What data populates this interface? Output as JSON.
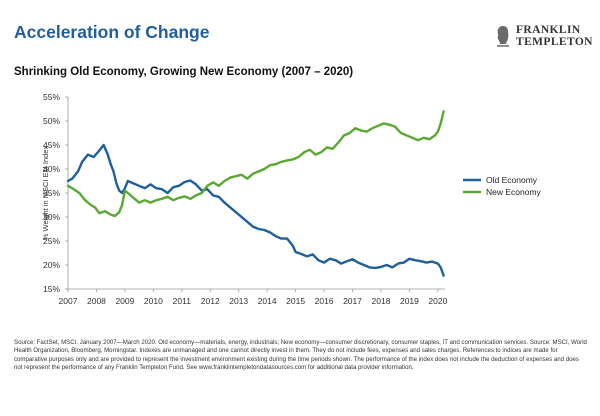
{
  "page": {
    "title": "Acceleration of Change",
    "subtitle": "Shrinking Old Economy, Growing New Economy (2007 – 2020)",
    "logo": {
      "line1": "FRANKLIN",
      "line2": "TEMPLETON",
      "icon": "franklin-head-icon"
    },
    "source_note": "Source: FactSet, MSCI. January 2007—March 2020. Old economy—materials, energy, industrials; New economy—consumer discretionary, consumer staples, IT and communication services. Source: MSCI, World Health Organization, Bloomberg, Morningstar. Indexes are unmanaged and one cannot directly invest in them. They do not include fees, expenses and sales charges. References to indices are made for comparative purposes only and are provided to represent the investment environment existing during the time periods shown. The performance of the index does not include the deduction of expenses and does not represent the performance of any Franklin Templeton Fund.  See www.franklintempletondatasources.com for additional data provider information."
  },
  "colors": {
    "title": "#1f5f9e",
    "old": "#1f5f9e",
    "new": "#5aa832"
  },
  "chart_data": {
    "type": "line",
    "title": "Shrinking Old Economy, Growing New Economy (2007 – 2020)",
    "xlabel": "",
    "ylabel": "% Weight in MSCI EM Index",
    "xlim": [
      2007,
      2020.25
    ],
    "ylim": [
      15,
      55
    ],
    "xticks": [
      2007,
      2008,
      2009,
      2010,
      2011,
      2012,
      2013,
      2014,
      2015,
      2016,
      2017,
      2018,
      2019,
      2020
    ],
    "yticks": [
      15,
      20,
      25,
      30,
      35,
      40,
      45,
      50,
      55
    ],
    "ytick_labels": [
      "15%",
      "20%",
      "25%",
      "30%",
      "35%",
      "40%",
      "45%",
      "50%",
      "55%"
    ],
    "grid": false,
    "legend": "right",
    "series": [
      {
        "name": "Old Economy",
        "x": [
          2007.0,
          2007.15,
          2007.35,
          2007.5,
          2007.7,
          2007.9,
          2008.05,
          2008.25,
          2008.4,
          2008.5,
          2008.6,
          2008.7,
          2008.8,
          2008.9,
          2009.0,
          2009.1,
          2009.3,
          2009.5,
          2009.7,
          2009.9,
          2010.1,
          2010.3,
          2010.5,
          2010.7,
          2010.9,
          2011.1,
          2011.3,
          2011.5,
          2011.7,
          2011.9,
          2012.1,
          2012.3,
          2012.5,
          2012.7,
          2012.9,
          2013.1,
          2013.3,
          2013.5,
          2013.7,
          2013.9,
          2014.1,
          2014.3,
          2014.5,
          2014.7,
          2014.9,
          2015.0,
          2015.2,
          2015.4,
          2015.6,
          2015.8,
          2016.0,
          2016.2,
          2016.4,
          2016.6,
          2016.8,
          2017.0,
          2017.2,
          2017.4,
          2017.6,
          2017.8,
          2018.0,
          2018.2,
          2018.4,
          2018.6,
          2018.8,
          2019.0,
          2019.2,
          2019.4,
          2019.6,
          2019.8,
          2020.0,
          2020.1,
          2020.2
        ],
        "values": [
          37.5,
          38.0,
          39.5,
          41.5,
          43.0,
          42.5,
          43.5,
          45.0,
          43.0,
          41.0,
          39.5,
          37.0,
          35.5,
          35.0,
          36.0,
          37.5,
          37.0,
          36.5,
          36.0,
          36.8,
          36.0,
          35.8,
          35.0,
          36.2,
          36.5,
          37.3,
          37.6,
          36.8,
          35.5,
          35.8,
          34.5,
          34.2,
          33.0,
          32.0,
          31.0,
          30.0,
          29.0,
          28.0,
          27.5,
          27.3,
          26.8,
          26.0,
          25.5,
          25.5,
          24.0,
          22.7,
          22.3,
          21.8,
          22.2,
          21.0,
          20.5,
          21.3,
          21.0,
          20.3,
          20.8,
          21.2,
          20.5,
          20.0,
          19.5,
          19.4,
          19.6,
          20.0,
          19.5,
          20.3,
          20.5,
          21.3,
          21.0,
          20.8,
          20.5,
          20.7,
          20.3,
          19.5,
          17.8
        ]
      },
      {
        "name": "New Economy",
        "x": [
          2007.0,
          2007.2,
          2007.4,
          2007.6,
          2007.8,
          2007.95,
          2008.1,
          2008.3,
          2008.5,
          2008.65,
          2008.8,
          2008.9,
          2009.0,
          2009.1,
          2009.3,
          2009.5,
          2009.7,
          2009.9,
          2010.1,
          2010.3,
          2010.5,
          2010.7,
          2010.9,
          2011.1,
          2011.3,
          2011.5,
          2011.7,
          2011.9,
          2012.1,
          2012.3,
          2012.5,
          2012.7,
          2012.9,
          2013.1,
          2013.3,
          2013.5,
          2013.7,
          2013.9,
          2014.1,
          2014.3,
          2014.5,
          2014.7,
          2014.9,
          2015.1,
          2015.3,
          2015.5,
          2015.7,
          2015.9,
          2016.1,
          2016.3,
          2016.5,
          2016.7,
          2016.9,
          2017.1,
          2017.3,
          2017.5,
          2017.7,
          2017.9,
          2018.1,
          2018.3,
          2018.5,
          2018.7,
          2018.9,
          2019.1,
          2019.3,
          2019.5,
          2019.7,
          2019.9,
          2020.0,
          2020.1,
          2020.2
        ],
        "values": [
          36.5,
          35.8,
          35.0,
          33.5,
          32.5,
          32.0,
          30.8,
          31.2,
          30.5,
          30.2,
          31.0,
          32.5,
          35.5,
          35.0,
          34.0,
          33.0,
          33.5,
          33.0,
          33.5,
          33.8,
          34.2,
          33.5,
          34.0,
          34.3,
          33.8,
          34.5,
          35.0,
          36.5,
          37.2,
          36.5,
          37.5,
          38.2,
          38.5,
          38.8,
          38.0,
          39.0,
          39.5,
          40.0,
          40.8,
          41.0,
          41.5,
          41.8,
          42.0,
          42.5,
          43.5,
          44.0,
          43.0,
          43.5,
          44.5,
          44.2,
          45.5,
          47.0,
          47.5,
          48.5,
          48.0,
          47.8,
          48.5,
          49.0,
          49.5,
          49.2,
          48.8,
          47.5,
          47.0,
          46.5,
          46.0,
          46.5,
          46.2,
          47.0,
          47.8,
          49.5,
          52.0
        ]
      }
    ]
  }
}
